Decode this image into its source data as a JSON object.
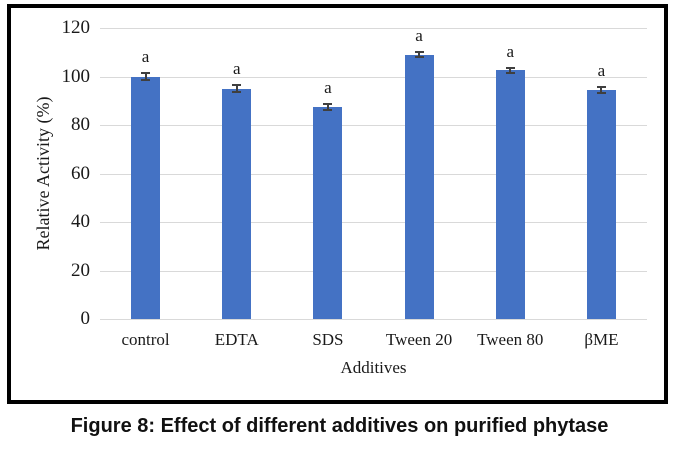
{
  "figure": {
    "caption": "Figure 8: Effect of different additives on purified phytase"
  },
  "chart_data": {
    "type": "bar",
    "title": "",
    "categories": [
      "control",
      "EDTA",
      "SDS",
      "Tween 20",
      "Tween 80",
      "βME"
    ],
    "values": [
      100,
      95,
      87.5,
      109,
      102.5,
      94.5
    ],
    "error_bars": [
      1.5,
      1.3,
      1.2,
      1.1,
      1.2,
      1.2
    ],
    "bar_annotations": [
      "a",
      "a",
      "a",
      "a",
      "a",
      "a"
    ],
    "xlabel": "Additives",
    "ylabel": "Relative Activity (%)",
    "ylim": [
      0,
      120
    ],
    "yticks": [
      0,
      20,
      40,
      60,
      80,
      100,
      120
    ],
    "grid": true,
    "legend": false,
    "bar_color": "#4472C4",
    "gridline_color": "#d9d9d9",
    "error_bar_color": "#3f3f3f",
    "frame_border_color": "#000000"
  }
}
